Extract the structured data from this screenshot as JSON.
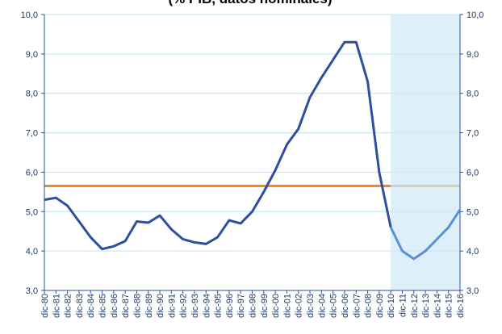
{
  "chart_data": {
    "type": "line",
    "title": "(% PIB, datos nominales)",
    "categories": [
      "dic-80",
      "dic-81",
      "dic-82",
      "dic-83",
      "dic-84",
      "dic-85",
      "dic-86",
      "dic-87",
      "dic-88",
      "dic-89",
      "dic-90",
      "dic-91",
      "dic-92",
      "dic-93",
      "dic-94",
      "dic-95",
      "dic-96",
      "dic-97",
      "dic-98",
      "dic-99",
      "dic-00",
      "dic-01",
      "dic-02",
      "dic-03",
      "dic-04",
      "dic-05",
      "dic-06",
      "dic-07",
      "dic-08",
      "dic-09",
      "dic-10",
      "dic-11",
      "dic-12",
      "dic-13",
      "dic-14",
      "dic-15",
      "dic-16"
    ],
    "series": [
      {
        "color": "#2e4f9e",
        "values": [
          5.3,
          5.35,
          5.15,
          4.75,
          4.35,
          4.05,
          4.12,
          4.25,
          4.75,
          4.72,
          4.9,
          4.55,
          4.3,
          4.22,
          4.18,
          4.35,
          4.78,
          4.7,
          5.0,
          5.5,
          6.05,
          6.7,
          7.1,
          7.9,
          8.4,
          8.85,
          9.3,
          9.3,
          8.3,
          6.0,
          4.6,
          null,
          null,
          null,
          null,
          null,
          null
        ]
      },
      {
        "color": "#5b8fd6",
        "values": [
          null,
          null,
          null,
          null,
          null,
          null,
          null,
          null,
          null,
          null,
          null,
          null,
          null,
          null,
          null,
          null,
          null,
          null,
          null,
          null,
          null,
          null,
          null,
          null,
          null,
          null,
          null,
          null,
          null,
          null,
          4.6,
          4.0,
          3.8,
          4.0,
          4.3,
          4.6,
          5.05
        ]
      }
    ],
    "reference_line": {
      "value": 5.65,
      "color": "#f08a24"
    },
    "forecast_shade_color": "#cfe9f7",
    "ylim": [
      3,
      10
    ],
    "yticks": [
      {
        "value": 3,
        "label": "3,0"
      },
      {
        "value": 4,
        "label": "4,0"
      },
      {
        "value": 5,
        "label": "5,0"
      },
      {
        "value": 6,
        "label": "6,0"
      },
      {
        "value": 7,
        "label": "7,0"
      },
      {
        "value": 8,
        "label": "8,0"
      },
      {
        "value": 9,
        "label": "9,0"
      },
      {
        "value": 10,
        "label": "10,0"
      }
    ],
    "y2lim": [
      3,
      10
    ],
    "y2ticks": [
      {
        "value": 3,
        "label": "3,0"
      },
      {
        "value": 4,
        "label": "4,0"
      },
      {
        "value": 5,
        "label": "5,0"
      },
      {
        "value": 6,
        "label": "6,0"
      },
      {
        "value": 7,
        "label": "7,0"
      },
      {
        "value": 8,
        "label": "8,0"
      },
      {
        "value": 9,
        "label": "9,0"
      },
      {
        "value": 10,
        "label": "10,0"
      }
    ],
    "grid": true
  }
}
